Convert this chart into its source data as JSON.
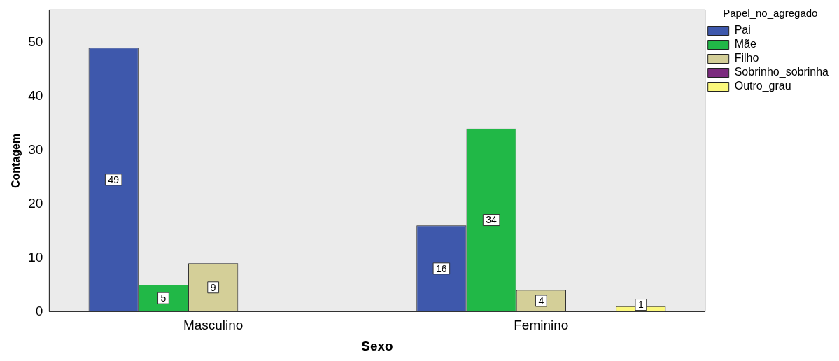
{
  "chart_data": {
    "type": "bar",
    "xlabel": "Sexo",
    "ylabel": "Contagem",
    "legend_title": "Papel_no_agregado",
    "categories": [
      "Masculino",
      "Feminino"
    ],
    "series": [
      {
        "name": "Pai",
        "color": "#3e58ac",
        "values": [
          49,
          16
        ]
      },
      {
        "name": "Mãe",
        "color": "#21b847",
        "values": [
          5,
          34
        ]
      },
      {
        "name": "Filho",
        "color": "#d4cf98",
        "values": [
          9,
          4
        ]
      },
      {
        "name": "Sobrinho_sobrinha",
        "color": "#7b2a7e",
        "values": [
          null,
          null
        ]
      },
      {
        "name": "Outro_grau",
        "color": "#fbf87c",
        "values": [
          null,
          1
        ]
      }
    ],
    "ylim": [
      0,
      56
    ],
    "yticks": [
      0,
      10,
      20,
      30,
      40,
      50
    ],
    "grid": false,
    "legend": "right",
    "data_labels": true
  }
}
